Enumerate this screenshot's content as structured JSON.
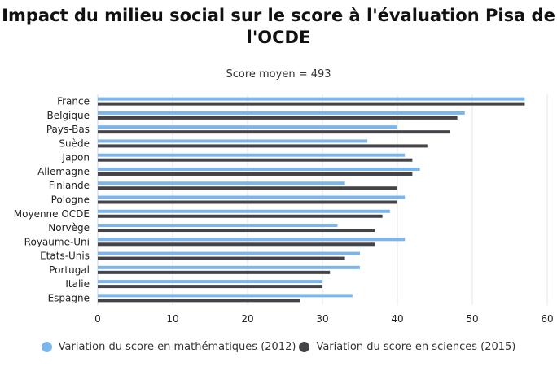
{
  "chart_data": {
    "type": "bar",
    "orientation": "horizontal",
    "title": "Impact du milieu social sur le score à l'évaluation Pisa de l'OCDE",
    "subtitle": "Score moyen = 493",
    "categories": [
      "France",
      "Belgique",
      "Pays-Bas",
      "Suède",
      "Japon",
      "Allemagne",
      "Finlande",
      "Pologne",
      "Moyenne OCDE",
      "Norvège",
      "Royaume-Uni",
      "Etats-Unis",
      "Portugal",
      "Italie",
      "Espagne"
    ],
    "series": [
      {
        "name": "Variation du score en mathématiques (2012)",
        "color": "#7cb5ec",
        "values": [
          57,
          49,
          40,
          36,
          41,
          43,
          33,
          41,
          39,
          32,
          41,
          35,
          35,
          30,
          34
        ]
      },
      {
        "name": "Variation du score en sciences (2015)",
        "color": "#434348",
        "values": [
          57,
          48,
          47,
          44,
          42,
          42,
          40,
          40,
          38,
          37,
          37,
          33,
          31,
          30,
          27
        ]
      }
    ],
    "xlim": [
      0,
      60
    ],
    "ticks": [
      0,
      10,
      20,
      30,
      40,
      50,
      60
    ],
    "grid": true,
    "legend": "bottom"
  }
}
